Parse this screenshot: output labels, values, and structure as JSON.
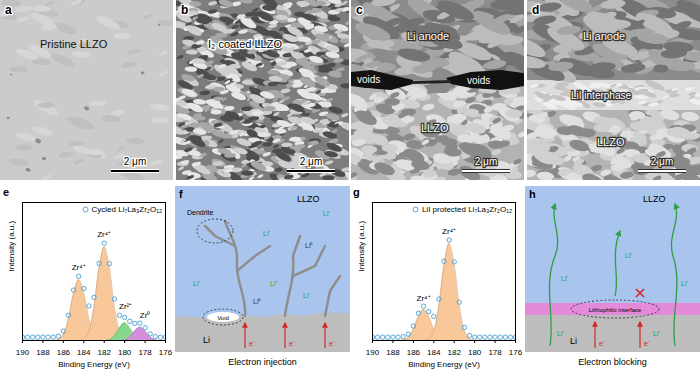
{
  "images": [
    {
      "panel": "a",
      "label": "Pristine LLZO",
      "scale_bar": "2 μm"
    },
    {
      "panel": "b",
      "label": "I₂ coated LLZO",
      "scale_bar": "2 μm"
    },
    {
      "panel": "c",
      "top_layer": "Li anode",
      "interface": [
        "voids",
        "voids"
      ],
      "bottom_layer": "LLZO",
      "scale_bar": "2 μm"
    },
    {
      "panel": "d",
      "top_layer": "Li anode",
      "interface": [
        "LiI interphase"
      ],
      "bottom_layer": "LLZO",
      "scale_bar": "2 μm"
    }
  ],
  "chart_data": [
    {
      "type": "scatter",
      "panel": "e",
      "x_label": "Binding Energy (eV)",
      "y_label": "Intensity (a.u.)",
      "xlim": [
        190,
        176
      ],
      "xticks": [
        190,
        188,
        186,
        184,
        182,
        180,
        178,
        176
      ],
      "ylim": [
        0,
        125
      ],
      "tick_labels": "x",
      "grid": false,
      "legend": "top-right",
      "x": [
        190,
        189.5,
        189,
        188.5,
        188,
        187.5,
        187,
        186.5,
        186,
        185.5,
        185,
        184.5,
        184,
        183.5,
        183,
        182.5,
        182,
        181.5,
        181,
        180.5,
        180,
        179.5,
        179,
        178.5,
        178,
        177.5,
        177,
        176.5,
        176
      ],
      "series": [
        {
          "name": "Cycled Li₇La₃Zr₂O₁₂",
          "type": "scatter",
          "marker": "circle",
          "color": "#5aa7d6",
          "values": [
            3,
            3,
            3,
            3,
            3,
            3,
            3.1,
            3.9,
            8.5,
            22.8,
            45.6,
            58.1,
            47,
            31.3,
            39.1,
            69.8,
            88.1,
            69.6,
            37.6,
            22.8,
            20.9,
            17.4,
            15.5,
            15.7,
            11.5,
            6,
            3.5,
            3,
            3
          ]
        },
        {
          "type": "area",
          "color": "#f8c79a",
          "values": [
            0,
            0,
            0,
            0,
            0,
            0,
            0.1,
            0.9,
            5.5,
            19.8,
            42.6,
            55,
            42.6,
            19.8,
            5.5,
            0.9,
            0.1,
            0,
            0,
            0,
            0,
            0,
            0,
            0,
            0,
            0,
            0,
            0,
            0
          ]
        },
        {
          "type": "area",
          "color": "#f8c79a",
          "values": [
            0,
            0,
            0,
            0,
            0,
            0,
            0,
            0,
            0,
            0,
            0,
            0.1,
            1.4,
            8.5,
            30.6,
            65.9,
            85,
            65.9,
            30.6,
            8.5,
            1.4,
            0.1,
            0,
            0,
            0,
            0,
            0,
            0,
            0
          ]
        },
        {
          "type": "area",
          "color": "#86d98a",
          "values": [
            0,
            0,
            0,
            0,
            0,
            0,
            0,
            0,
            0,
            0,
            0,
            0,
            0,
            0,
            0,
            0,
            0,
            0.7,
            4,
            11.3,
            16,
            11.3,
            4,
            0.7,
            0,
            0,
            0,
            0,
            0
          ]
        },
        {
          "type": "area",
          "color": "#d38fdc",
          "values": [
            0,
            0,
            0,
            0,
            0,
            0,
            0,
            0,
            0,
            0,
            0,
            0,
            0,
            0,
            0,
            0,
            0,
            0,
            0,
            0,
            0.5,
            3,
            8.5,
            12,
            8.5,
            3,
            0.5,
            0,
            0
          ]
        }
      ],
      "annotations": [
        {
          "text": "Zr⁴⁺",
          "x": 184.5,
          "y": 66
        },
        {
          "text": "Zr⁴⁺",
          "x": 182,
          "y": 96
        },
        {
          "text": "Zr²⁺",
          "x": 179.9,
          "y": 31
        },
        {
          "text": "Zr⁰",
          "x": 178,
          "y": 23
        }
      ]
    },
    {
      "type": "scatter",
      "panel": "g",
      "x_label": "Binding Energy (eV)",
      "y_label": "Intensity (a.u.)",
      "xlim": [
        190,
        176
      ],
      "xticks": [
        190,
        188,
        186,
        184,
        182,
        180,
        178,
        176
      ],
      "ylim": [
        0,
        125
      ],
      "tick_labels": "x",
      "grid": false,
      "legend": "top-right",
      "x": [
        190,
        189.5,
        189,
        188.5,
        188,
        187.5,
        187,
        186.5,
        186,
        185.5,
        185,
        184.5,
        184,
        183.5,
        183,
        182.5,
        182,
        181.5,
        181,
        180.5,
        180,
        179.5,
        179,
        178.5,
        178,
        177.5,
        177,
        176.5,
        176
      ],
      "series": [
        {
          "name": "LiI protected Li₇La₃Zr₂O₁₂",
          "type": "scatter",
          "marker": "circle",
          "color": "#5aa7d6",
          "values": [
            3,
            3,
            3,
            3,
            3,
            3,
            3.5,
            5.8,
            13.1,
            24.7,
            31.1,
            26.2,
            21.9,
            37.5,
            71.7,
            91,
            71.2,
            34.7,
            11.8,
            4.5,
            3.1,
            3,
            3,
            3,
            3,
            3,
            3,
            3,
            3
          ]
        },
        {
          "type": "area",
          "color": "#f8c79a",
          "values": [
            0,
            0,
            0,
            0,
            0,
            0,
            0.5,
            2.8,
            10.1,
            21.7,
            28,
            21.7,
            10.1,
            2.8,
            0.5,
            0,
            0,
            0,
            0,
            0,
            0,
            0,
            0,
            0,
            0,
            0,
            0,
            0,
            0
          ]
        },
        {
          "type": "area",
          "color": "#f8c79a",
          "values": [
            0,
            0,
            0,
            0,
            0,
            0,
            0,
            0,
            0,
            0,
            0.1,
            1.5,
            8.8,
            31.7,
            68.2,
            88,
            68.2,
            31.7,
            8.8,
            1.5,
            0.1,
            0,
            0,
            0,
            0,
            0,
            0,
            0,
            0
          ]
        }
      ],
      "annotations": [
        {
          "text": "Zr⁴⁺",
          "x": 185,
          "y": 38
        },
        {
          "text": "Zr⁴⁺",
          "x": 182.5,
          "y": 99
        }
      ]
    }
  ],
  "diagrams": [
    {
      "panel": "f",
      "labels": {
        "llzo": "LLZO",
        "dendrite": "Dendrite",
        "void": "Void",
        "li_ion": "Li⁺",
        "li_metal": "Li⁰",
        "electron": "e⁻",
        "li": "Li",
        "caption": "Electron injection"
      }
    },
    {
      "panel": "h",
      "labels": {
        "llzo": "LLZO",
        "li_ion": "Li⁺",
        "li": "Li",
        "interface": "Lithiophilic interface",
        "electron": "e⁻",
        "caption": "Electron blocking"
      }
    }
  ]
}
